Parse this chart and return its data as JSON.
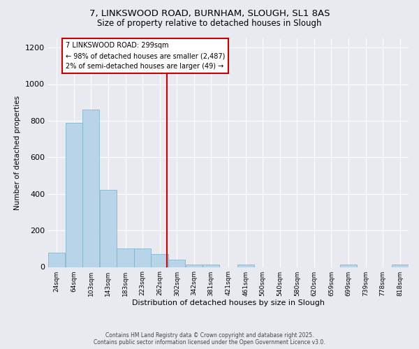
{
  "title1": "7, LINKSWOOD ROAD, BURNHAM, SLOUGH, SL1 8AS",
  "title2": "Size of property relative to detached houses in Slough",
  "xlabel": "Distribution of detached houses by size in Slough",
  "ylabel": "Number of detached properties",
  "footer1": "Contains HM Land Registry data © Crown copyright and database right 2025.",
  "footer2": "Contains public sector information licensed under the Open Government Licence v3.0.",
  "annotation_line1": "7 LINKSWOOD ROAD: 299sqm",
  "annotation_line2": "← 98% of detached houses are smaller (2,487)",
  "annotation_line3": "2% of semi-detached houses are larger (49) →",
  "bar_color": "#b8d4e8",
  "bar_edge_color": "#7aaec8",
  "background_color": "#e8eaf0",
  "vline_x": 299,
  "vline_color": "#cc0000",
  "bins_left": [
    24,
    64,
    103,
    143,
    183,
    223,
    262,
    302,
    342,
    381,
    421,
    461,
    500,
    540,
    580,
    620,
    659,
    699,
    739,
    778,
    818
  ],
  "bar_heights": [
    80,
    790,
    860,
    420,
    100,
    100,
    70,
    40,
    15,
    15,
    0,
    15,
    0,
    0,
    0,
    0,
    0,
    15,
    0,
    0,
    15
  ],
  "bin_width": 39,
  "ylim": [
    0,
    1250
  ],
  "yticks": [
    0,
    200,
    400,
    600,
    800,
    1000,
    1200
  ],
  "xtick_labels": [
    "24sqm",
    "64sqm",
    "103sqm",
    "143sqm",
    "183sqm",
    "223sqm",
    "262sqm",
    "302sqm",
    "342sqm",
    "381sqm",
    "421sqm",
    "461sqm",
    "500sqm",
    "540sqm",
    "580sqm",
    "620sqm",
    "659sqm",
    "699sqm",
    "739sqm",
    "778sqm",
    "818sqm"
  ],
  "ann_text_fontsize": 7.0,
  "title1_fontsize": 9.5,
  "title2_fontsize": 8.5,
  "ylabel_fontsize": 7.5,
  "xlabel_fontsize": 8.0,
  "ytick_fontsize": 8.0,
  "xtick_fontsize": 6.5,
  "footer_fontsize": 5.5
}
